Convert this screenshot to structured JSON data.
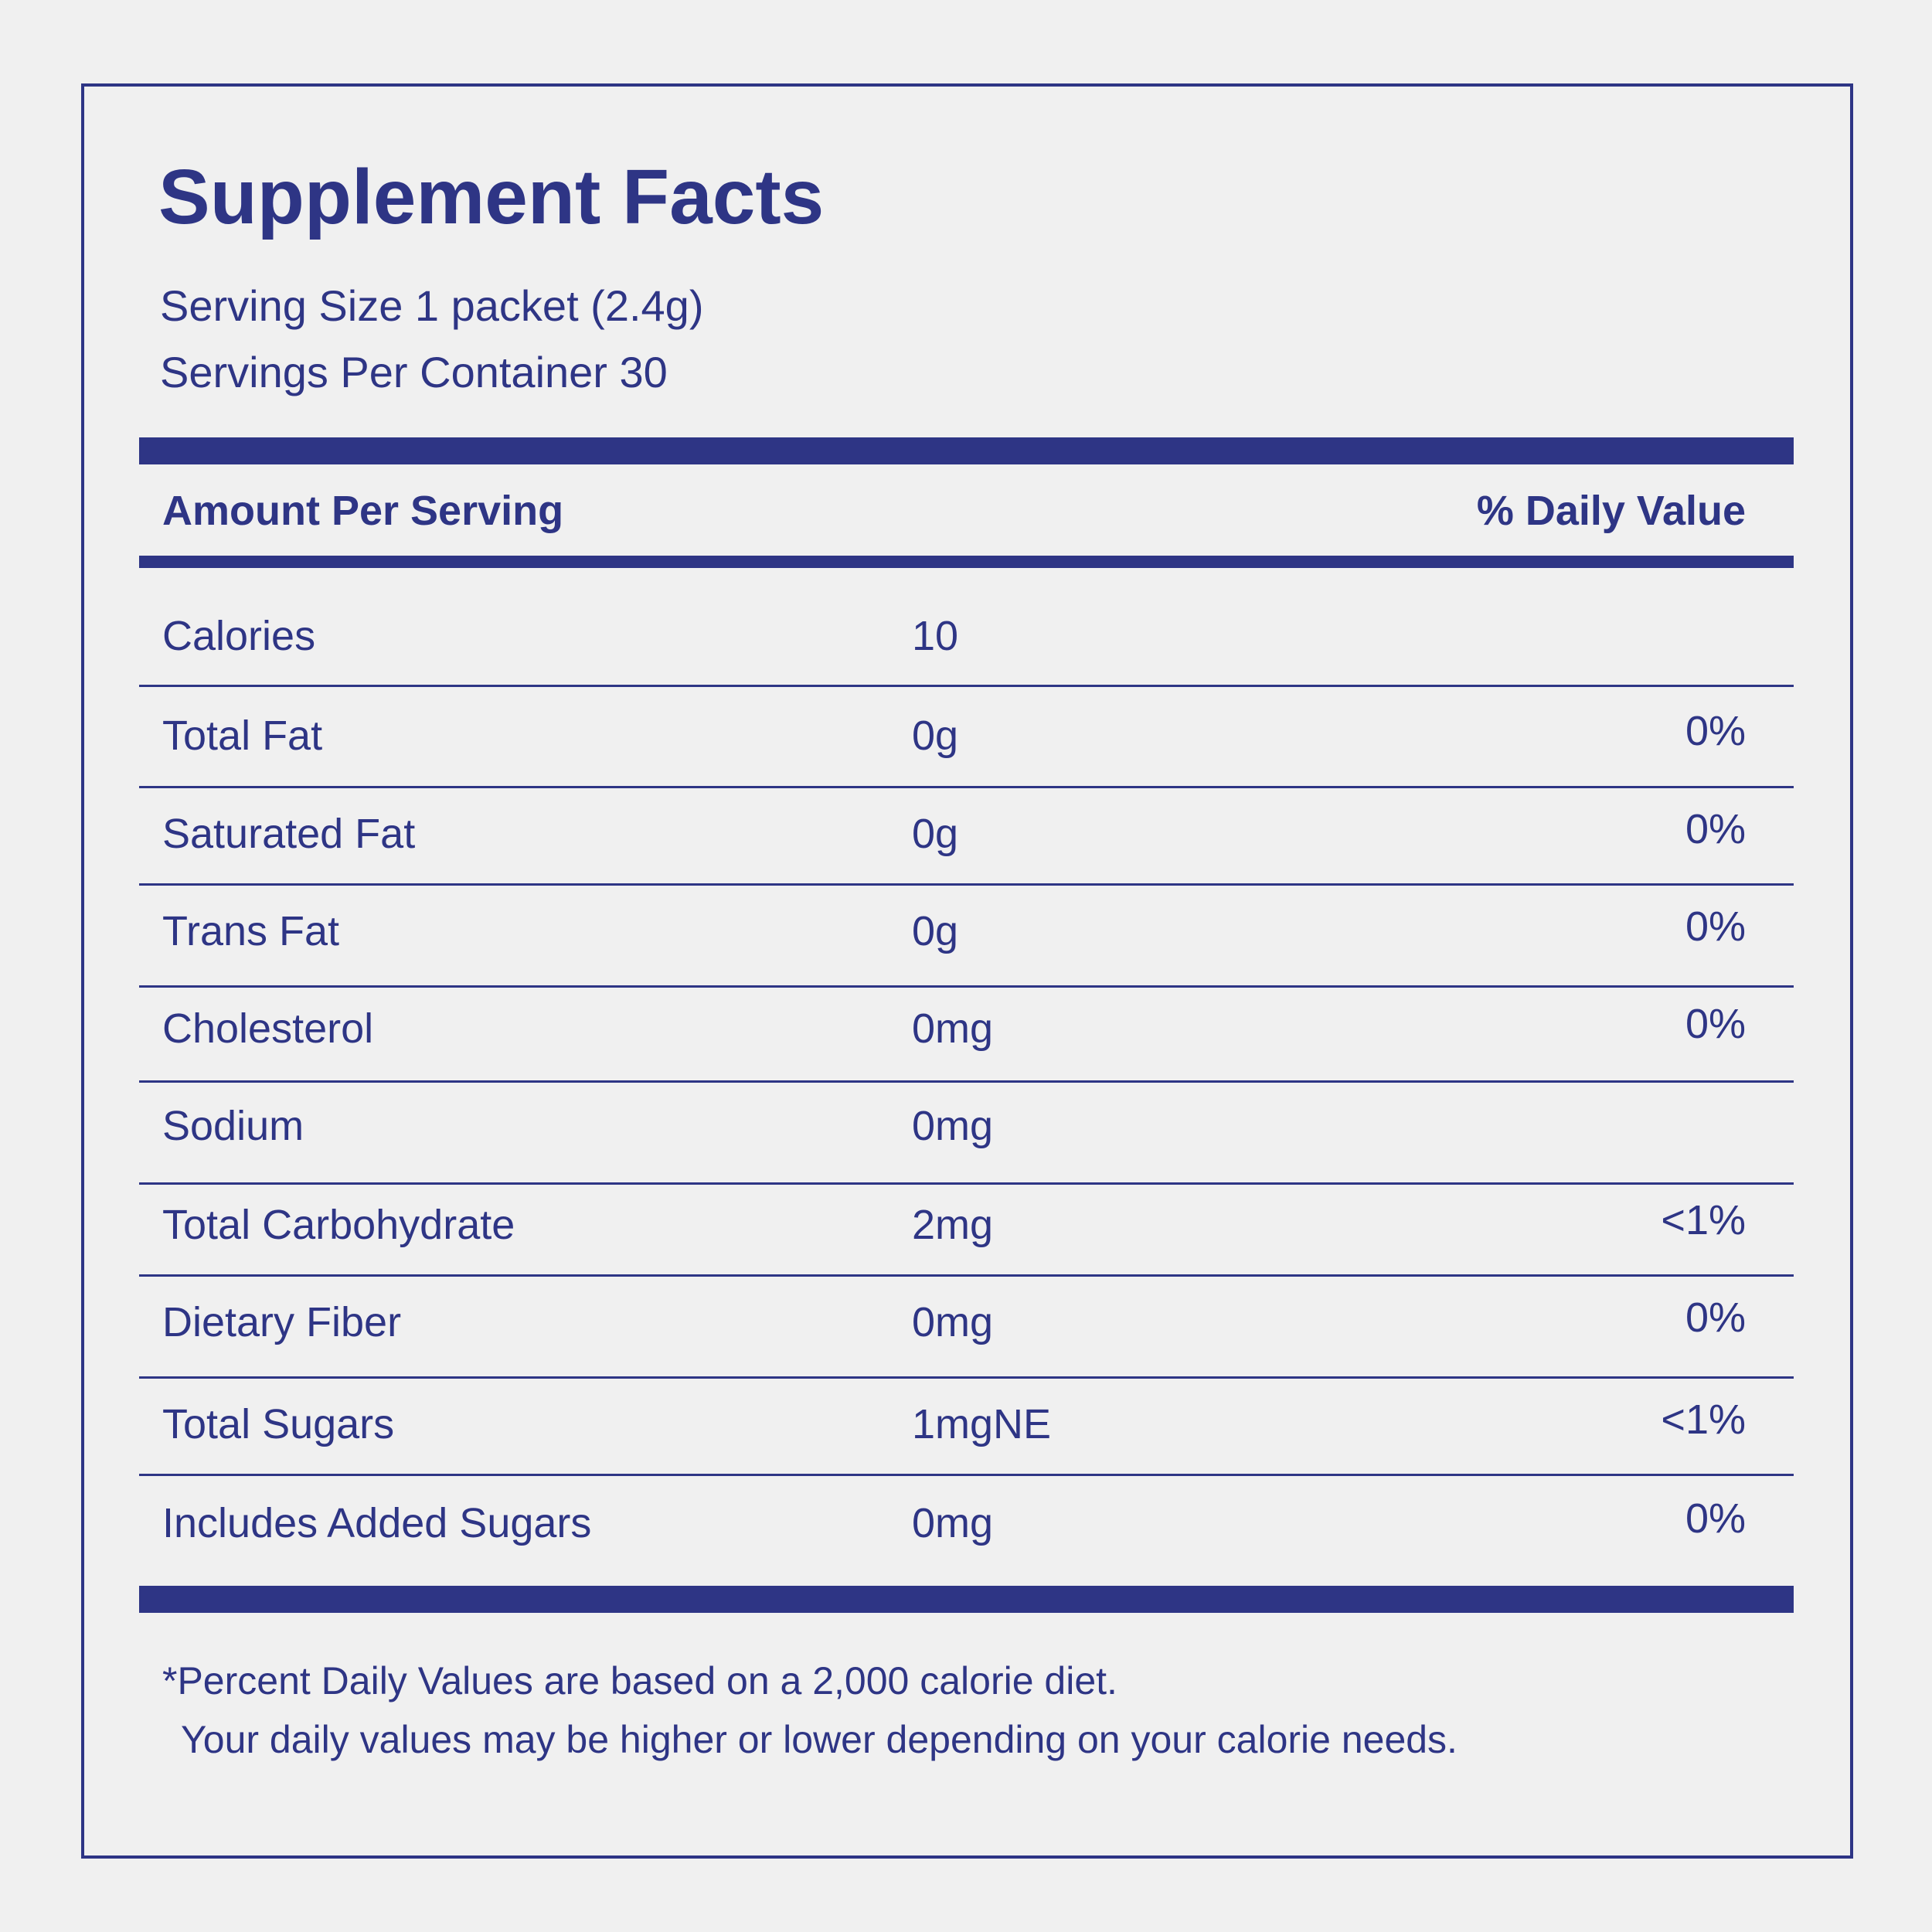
{
  "header": {
    "title": "Supplement Facts",
    "serving_size": "Serving Size 1 packet (2.4g)",
    "servings_per_container": "Servings Per Container 30"
  },
  "table": {
    "columns": [
      "Amount Per Serving",
      "% Daily Value"
    ],
    "rows": [
      {
        "nutrient": "Calories",
        "amount": "10"
      },
      {
        "nutrient": "Total Fat",
        "amount": "0g",
        "daily_value": "0%"
      },
      {
        "nutrient": "Saturated Fat",
        "amount": "0g",
        "daily_value": "0%"
      },
      {
        "nutrient": "Trans Fat",
        "amount": "0g",
        "daily_value": "0%"
      },
      {
        "nutrient": "Cholesterol",
        "amount": "0mg",
        "daily_value": "0%"
      },
      {
        "nutrient": "Sodium",
        "amount": "0mg"
      },
      {
        "nutrient": "Total Carbohydrate",
        "amount": "2mg",
        "daily_value": "<1%"
      },
      {
        "nutrient": "Dietary Fiber",
        "amount": "0mg",
        "daily_value": "0%"
      },
      {
        "nutrient": "Total Sugars",
        "amount": "1mgNE",
        "daily_value": "<1%"
      },
      {
        "nutrient": "Includes Added Sugars",
        "amount": "0mg",
        "daily_value": "0%"
      }
    ]
  },
  "footnote": [
    "*Percent Daily Values are based on a 2,000 calorie diet.",
    "Your daily values may be higher or lower depending on your calorie needs."
  ]
}
